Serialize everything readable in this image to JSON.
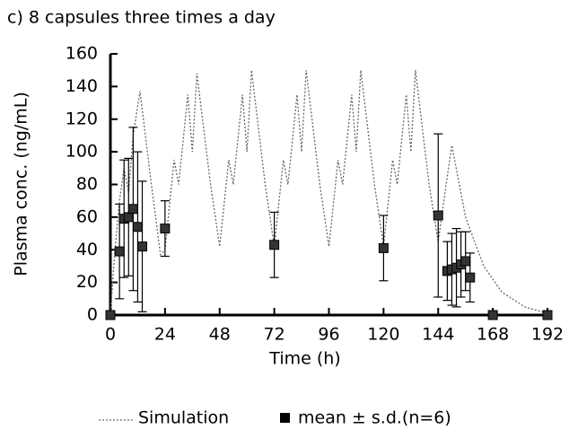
{
  "chart_data": {
    "type": "scatter",
    "title": "c) 8 capsules three times a day",
    "xlabel": "Time (h)",
    "ylabel": "Plasma conc. (ng/mL)",
    "xlim": [
      0,
      192
    ],
    "xticks": [
      0,
      24,
      48,
      72,
      96,
      120,
      144,
      168,
      192
    ],
    "ylim": [
      0,
      160
    ],
    "yticks": [
      0,
      20,
      40,
      60,
      80,
      100,
      120,
      140,
      160
    ],
    "legend": "bottom",
    "series": [
      {
        "name": "Simulation",
        "kind": "line",
        "color": "#666666",
        "x": [
          0,
          2,
          4,
          6,
          8,
          10,
          13,
          18,
          22,
          24,
          28,
          30,
          34,
          36,
          38,
          44,
          48,
          52,
          54,
          58,
          60,
          62,
          68,
          72,
          76,
          78,
          82,
          84,
          86,
          92,
          96,
          100,
          102,
          106,
          108,
          110,
          116,
          120,
          124,
          126,
          130,
          132,
          134,
          140,
          144,
          148,
          150,
          156,
          164,
          172,
          182,
          192
        ],
        "values": [
          0,
          40,
          70,
          90,
          75,
          110,
          137,
          80,
          37,
          40,
          95,
          80,
          135,
          100,
          148,
          80,
          42,
          95,
          80,
          135,
          100,
          150,
          80,
          42,
          95,
          80,
          135,
          100,
          150,
          80,
          42,
          95,
          80,
          135,
          100,
          150,
          80,
          42,
          95,
          80,
          135,
          100,
          150,
          80,
          45,
          85,
          104,
          60,
          30,
          14,
          5,
          1
        ]
      },
      {
        "name": "mean ± s.d.(n=6)",
        "kind": "errorbar",
        "color": "#000000",
        "x": [
          0,
          4,
          6,
          8,
          10,
          12,
          14,
          24,
          72,
          120,
          144,
          148,
          150,
          152,
          154,
          156,
          158,
          168,
          192
        ],
        "values": [
          0,
          39,
          59,
          60,
          65,
          54,
          42,
          53,
          43,
          41,
          61,
          27,
          28,
          29,
          31,
          33,
          23,
          0,
          0
        ],
        "errors": [
          0,
          29,
          36,
          36,
          50,
          46,
          40,
          17,
          20,
          20,
          50,
          18,
          22,
          24,
          20,
          18,
          15,
          0,
          0
        ]
      }
    ]
  }
}
